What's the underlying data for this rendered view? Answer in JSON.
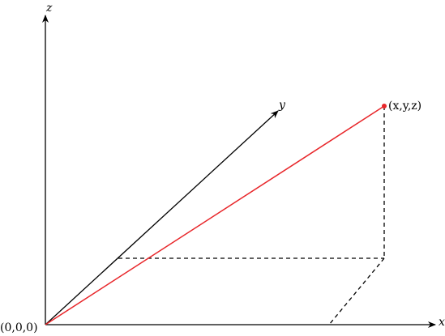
{
  "axes": {
    "z": "z",
    "y": "y",
    "x": "x"
  },
  "points": {
    "origin": "(0,0,0)",
    "target": "(x,y,z)"
  }
}
